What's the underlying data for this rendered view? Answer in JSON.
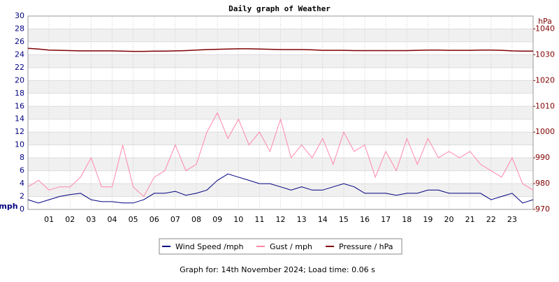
{
  "chart_data": {
    "type": "line",
    "title": "Daily graph of Weather",
    "ylabel": "mph",
    "y2label": "hPa",
    "footer": "Graph for: 14th November 2024; Load time: 0.06 s",
    "x": [
      0,
      0.5,
      1,
      1.5,
      2,
      2.5,
      3,
      3.5,
      4,
      4.5,
      5,
      5.5,
      6,
      6.5,
      7,
      7.5,
      8,
      8.5,
      9,
      9.5,
      10,
      10.5,
      11,
      11.5,
      12,
      12.5,
      13,
      13.5,
      14,
      14.5,
      15,
      15.5,
      16,
      16.5,
      17,
      17.5,
      18,
      18.5,
      19,
      19.5,
      20,
      20.5,
      21,
      21.5,
      22,
      22.5,
      23,
      23.5,
      24
    ],
    "xlim": [
      0,
      24
    ],
    "xticks": [
      {
        "value": 1,
        "label": "01"
      },
      {
        "value": 2,
        "label": "02"
      },
      {
        "value": 3,
        "label": "03"
      },
      {
        "value": 4,
        "label": "04"
      },
      {
        "value": 5,
        "label": "05"
      },
      {
        "value": 6,
        "label": "06"
      },
      {
        "value": 7,
        "label": "07"
      },
      {
        "value": 8,
        "label": "08"
      },
      {
        "value": 9,
        "label": "09"
      },
      10,
      11,
      12,
      13,
      14,
      15,
      16,
      17,
      18,
      19,
      20,
      21,
      22,
      23
    ],
    "ylim": [
      0,
      30
    ],
    "yticks": [
      0,
      2,
      4,
      6,
      8,
      10,
      12,
      14,
      16,
      18,
      20,
      22,
      24,
      26,
      28,
      30
    ],
    "y2lim": [
      970,
      1045
    ],
    "y2ticks": [
      970,
      980,
      990,
      1000,
      1010,
      1020,
      1030,
      1040
    ],
    "grid": true,
    "legend": "bottom",
    "series": [
      {
        "name": "Gust / mph",
        "color": "#ff88aa",
        "values": [
          3.5,
          4.5,
          3,
          3.5,
          3.5,
          5,
          8,
          3.5,
          3.5,
          10,
          3.5,
          2,
          5,
          6,
          10,
          6,
          7,
          12,
          15,
          11,
          14,
          10,
          12,
          9,
          14,
          8,
          10,
          8,
          11,
          7,
          12,
          9,
          10,
          5,
          9,
          6,
          11,
          7,
          11,
          8,
          9,
          8,
          9,
          7,
          6,
          5,
          8,
          4,
          3
        ]
      },
      {
        "name": "Wind Speed /mph",
        "color": "#000080",
        "values": [
          1.5,
          1,
          1.5,
          2,
          2.3,
          2.5,
          1.5,
          1.2,
          1.2,
          1,
          1,
          1.5,
          2.5,
          2.5,
          2.8,
          2.2,
          2.5,
          3,
          4.5,
          5.5,
          5,
          4.5,
          4,
          4,
          3.5,
          3,
          3.5,
          3,
          3,
          3.5,
          4,
          3.5,
          2.5,
          2.5,
          2.5,
          2.2,
          2.5,
          2.5,
          3,
          3,
          2.5,
          2.5,
          2.5,
          2.5,
          1.5,
          2,
          2.5,
          1,
          1.5
        ]
      },
      {
        "name": "Pressure / hPa",
        "color": "#800000",
        "axis": "y2",
        "values": [
          1032.5,
          1032.2,
          1031.8,
          1031.7,
          1031.6,
          1031.5,
          1031.5,
          1031.5,
          1031.5,
          1031.4,
          1031.3,
          1031.3,
          1031.4,
          1031.4,
          1031.5,
          1031.6,
          1031.8,
          1032,
          1032.1,
          1032.2,
          1032.3,
          1032.3,
          1032.2,
          1032.1,
          1032,
          1032,
          1032,
          1031.9,
          1031.7,
          1031.7,
          1031.7,
          1031.6,
          1031.6,
          1031.6,
          1031.6,
          1031.6,
          1031.6,
          1031.7,
          1031.8,
          1031.8,
          1031.7,
          1031.7,
          1031.7,
          1031.8,
          1031.8,
          1031.7,
          1031.5,
          1031.4,
          1031.4
        ]
      }
    ]
  }
}
